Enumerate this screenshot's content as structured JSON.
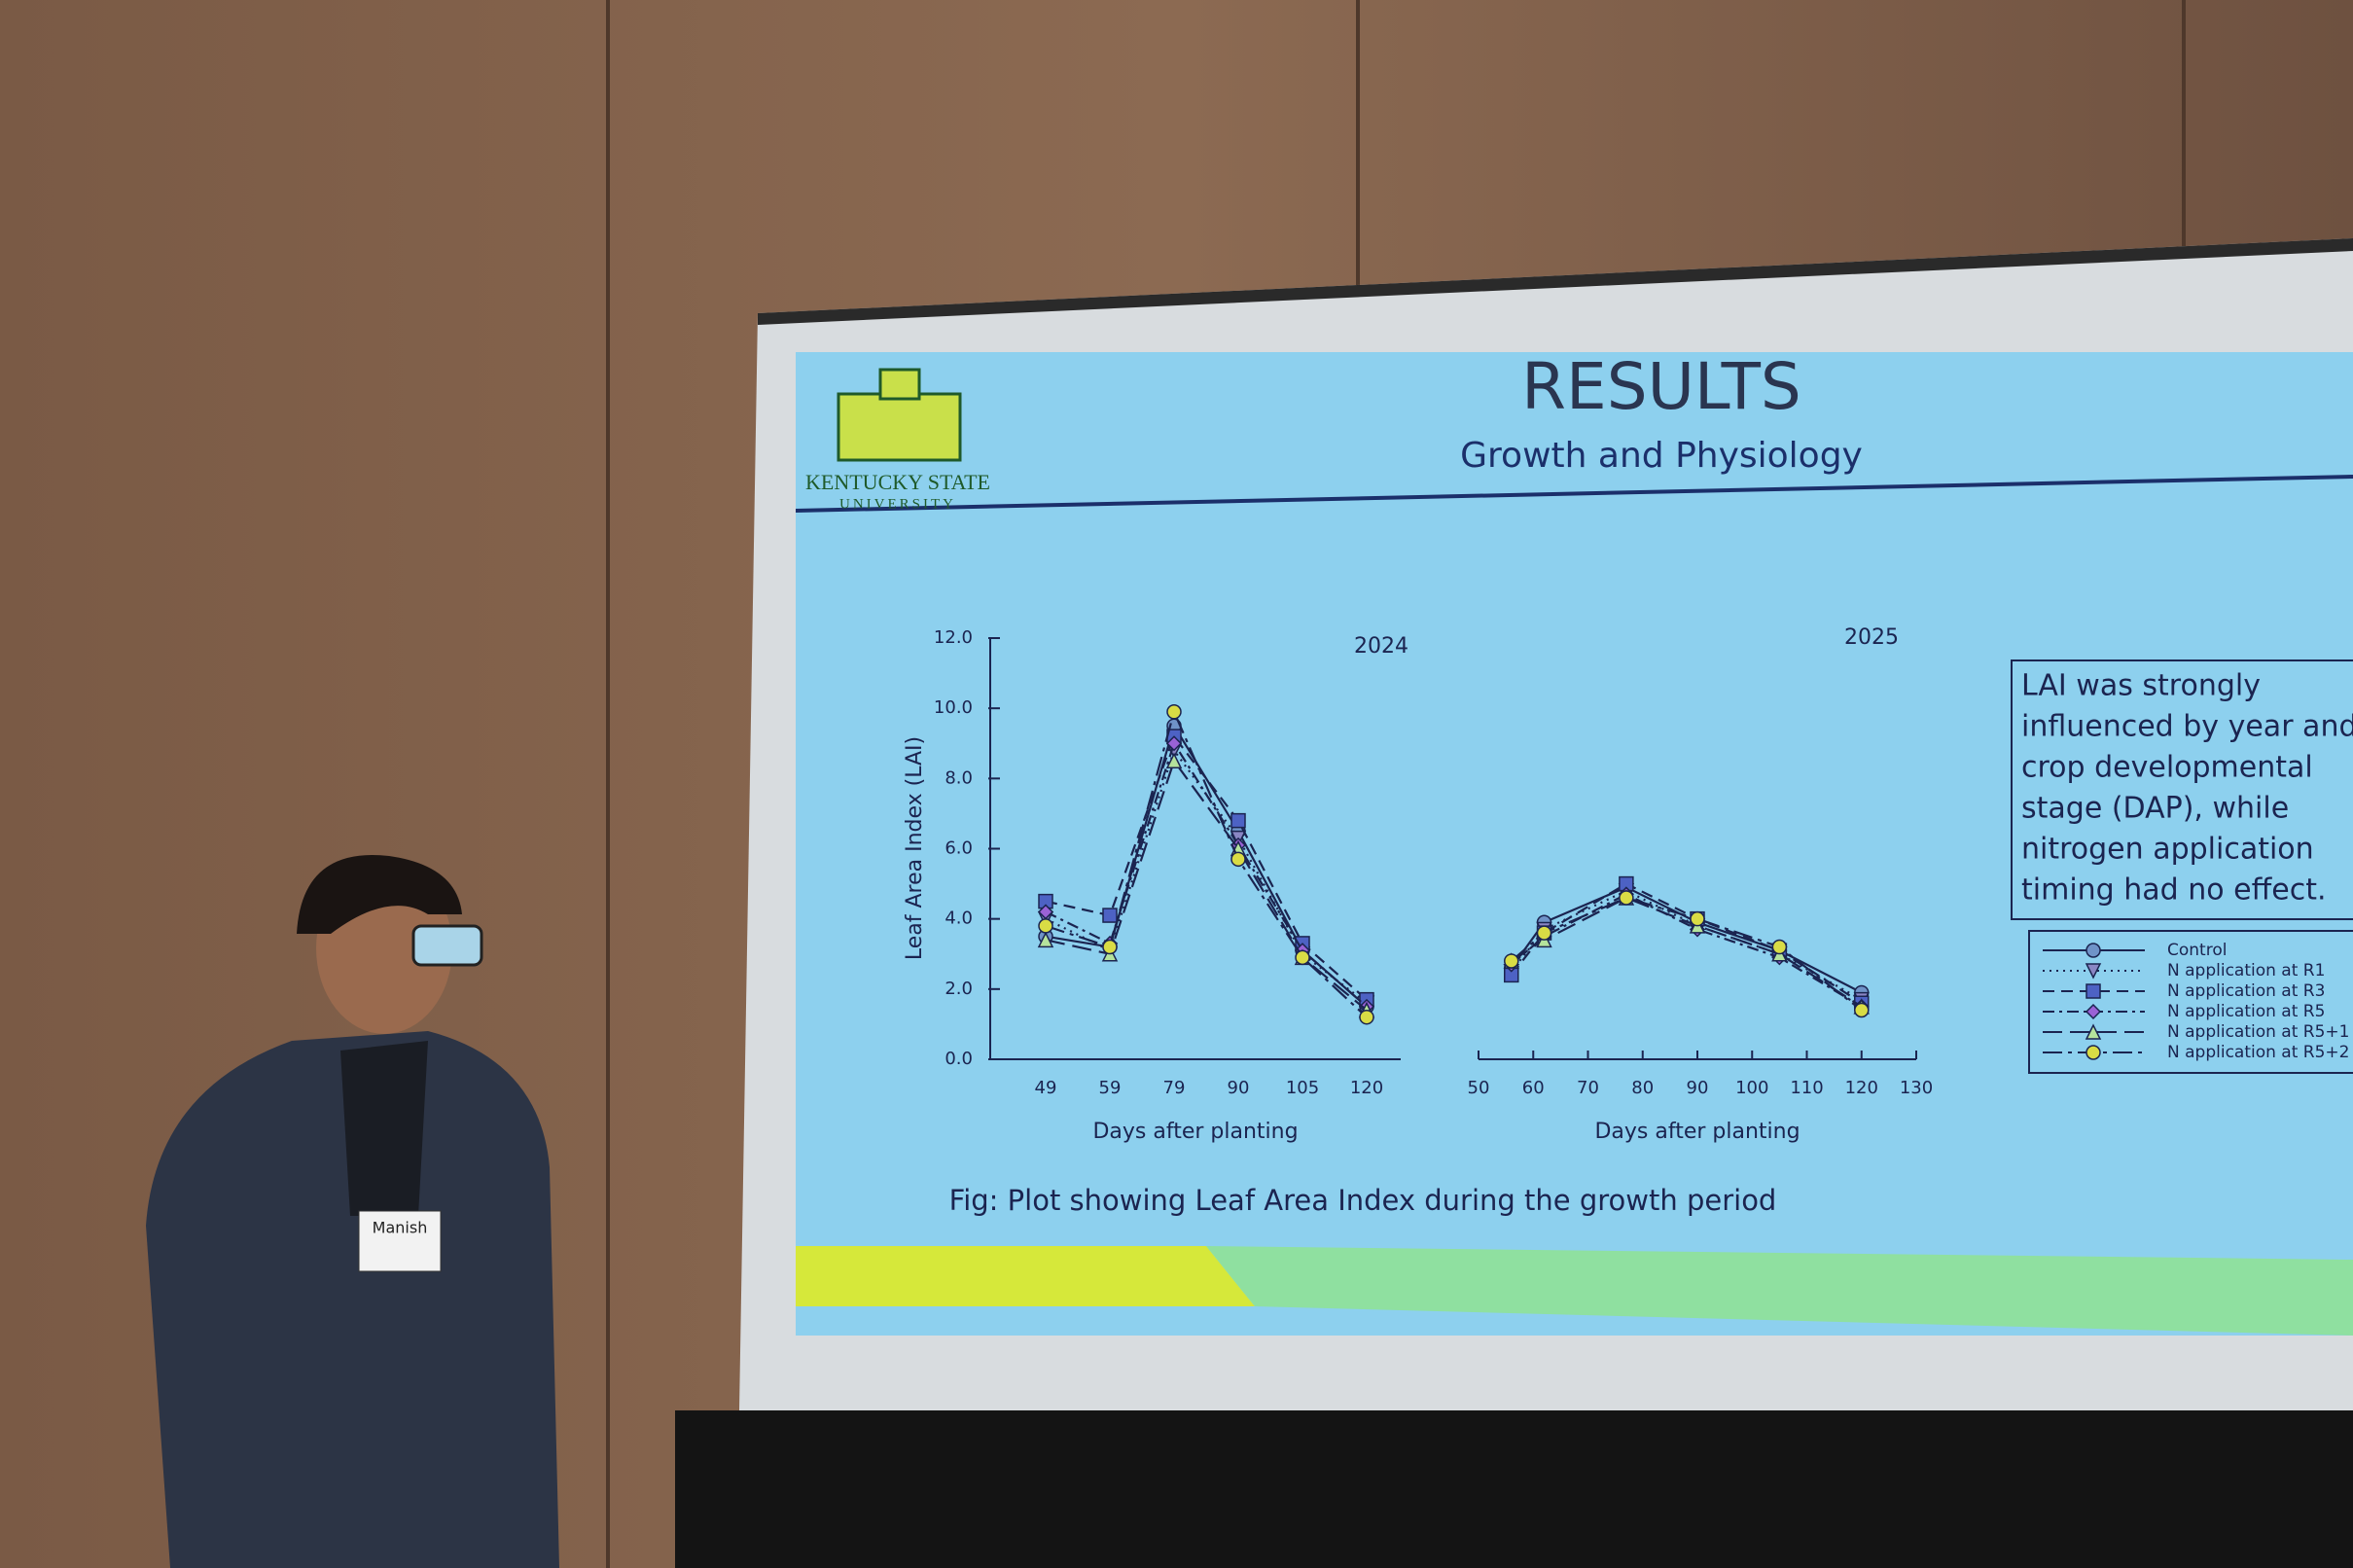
{
  "slide": {
    "title": "RESULTS",
    "subtitle": "Growth and Physiology",
    "logo_line1": "KENTUCKY STATE",
    "logo_line2": "UNIVERSITY",
    "caption": "Fig: Plot showing Leaf Area Index during the growth period",
    "note": [
      "LAI was strongly",
      "influenced by year and",
      "crop developmental",
      "stage (DAP), while",
      "nitrogen application",
      "timing had no effect."
    ]
  },
  "badge": {
    "name": "Manish"
  },
  "chart_data": [
    {
      "type": "line",
      "title": "2024",
      "xlabel": "Days after planting",
      "ylabel": "Leaf Area Index (LAI)",
      "categories": [
        "49",
        "59",
        "79",
        "90",
        "105",
        "120"
      ],
      "ylim": [
        0,
        12
      ],
      "yticks": [
        {
          "value": 0,
          "label": "0.0"
        },
        {
          "value": 2,
          "label": "2.0"
        },
        {
          "value": 4,
          "label": "4.0"
        },
        {
          "value": 6,
          "label": "6.0"
        },
        {
          "value": 8,
          "label": "8.0"
        },
        {
          "value": 10,
          "label": "10.0"
        },
        {
          "value": 12,
          "label": "12.0"
        }
      ],
      "series": [
        {
          "name": "Control",
          "color": "#6f93c8",
          "marker": "circle",
          "dash": "solid",
          "values": [
            3.5,
            3.2,
            9.5,
            6.5,
            3.1,
            1.5
          ]
        },
        {
          "name": "N application at R1",
          "color": "#8a86c4",
          "marker": "triangle-down",
          "dash": "dotted",
          "values": [
            4.0,
            3.1,
            8.8,
            6.3,
            3.0,
            1.6
          ]
        },
        {
          "name": "N application at R3",
          "color": "#4d62c4",
          "marker": "square",
          "dash": "dashed",
          "values": [
            4.5,
            4.1,
            9.2,
            6.8,
            3.3,
            1.7
          ]
        },
        {
          "name": "N application at R5",
          "color": "#9a62d6",
          "marker": "diamond",
          "dash": "dashdot",
          "values": [
            4.2,
            3.3,
            9.0,
            6.1,
            3.1,
            1.5
          ]
        },
        {
          "name": "N application at R5+1",
          "color": "#b5e39c",
          "marker": "triangle-up",
          "dash": "longdash",
          "values": [
            3.4,
            3.0,
            8.5,
            6.0,
            2.9,
            1.4
          ]
        },
        {
          "name": "N application at R5+2",
          "color": "#d9dc45",
          "marker": "circle",
          "dash": "dashdotlong",
          "values": [
            3.8,
            3.2,
            9.9,
            5.7,
            2.9,
            1.2
          ]
        }
      ]
    },
    {
      "type": "line",
      "title": "2025",
      "xlabel": "Days after planting",
      "x": [
        56,
        62,
        77,
        90,
        105,
        120
      ],
      "xlim": [
        50,
        130
      ],
      "xticks": [
        50,
        60,
        70,
        80,
        90,
        100,
        110,
        120,
        130
      ],
      "ylim": [
        0,
        12
      ],
      "series": [
        {
          "color": "#6f93c8",
          "marker": "circle",
          "dash": "solid",
          "values": [
            2.6,
            3.9,
            4.9,
            3.9,
            3.1,
            1.9
          ]
        },
        {
          "color": "#8a86c4",
          "marker": "triangle-down",
          "dash": "dotted",
          "values": [
            2.5,
            3.7,
            4.8,
            3.8,
            3.0,
            1.7
          ]
        },
        {
          "color": "#4d62c4",
          "marker": "square",
          "dash": "dashed",
          "values": [
            2.4,
            3.6,
            5.0,
            4.0,
            3.1,
            1.6
          ]
        },
        {
          "color": "#9a62d6",
          "marker": "diamond",
          "dash": "dashdot",
          "values": [
            2.7,
            3.5,
            4.7,
            3.7,
            2.9,
            1.5
          ]
        },
        {
          "color": "#b5e39c",
          "marker": "triangle-up",
          "dash": "longdash",
          "values": [
            2.8,
            3.4,
            4.6,
            3.8,
            3.0,
            1.5
          ]
        },
        {
          "color": "#d9dc45",
          "marker": "circle",
          "dash": "dashdotlong",
          "values": [
            2.8,
            3.6,
            4.6,
            4.0,
            3.2,
            1.4
          ]
        }
      ]
    }
  ]
}
